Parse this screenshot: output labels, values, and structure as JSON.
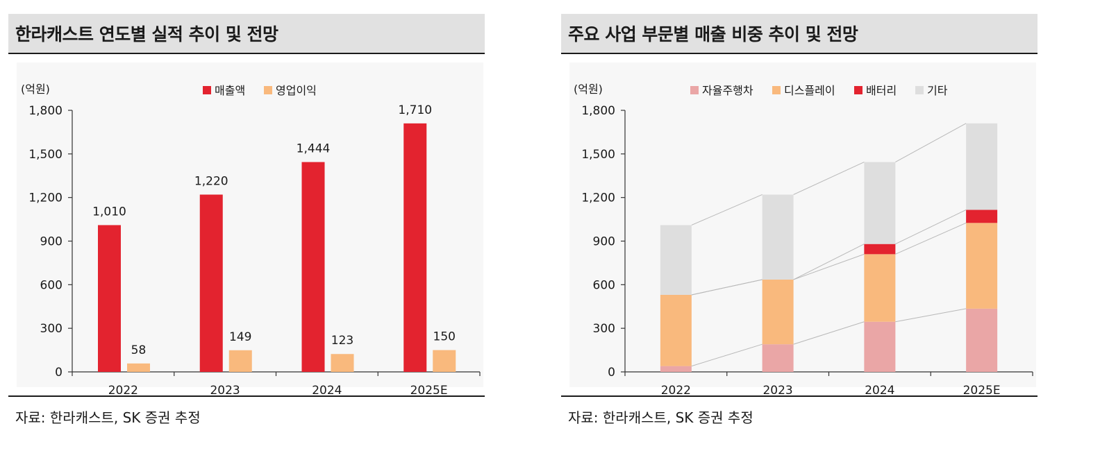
{
  "left_panel": {
    "title": "한라캐스트 연도별 실적 추이 및 전망",
    "source": "자료: 한라캐스트, SK 증권 추정"
  },
  "right_panel": {
    "title": "주요 사업 부문별 매출 비중 추이 및 전망",
    "source": "자료: 한라캐스트, SK 증권 추정"
  },
  "chart_data": [
    {
      "type": "bar",
      "unit_label": "(억원)",
      "categories": [
        "2022",
        "2023",
        "2024",
        "2025E"
      ],
      "series": [
        {
          "name": "매출액",
          "values": [
            1010,
            1220,
            1444,
            1710
          ],
          "labels": [
            "1,010",
            "1,220",
            "1,444",
            "1,710"
          ],
          "color": "#e3232f"
        },
        {
          "name": "영업이익",
          "values": [
            58,
            149,
            123,
            150
          ],
          "labels": [
            "58",
            "149",
            "123",
            "150"
          ],
          "color": "#f9b97d"
        }
      ],
      "yticks": [
        0,
        300,
        600,
        900,
        1200,
        1500,
        1800
      ],
      "ytick_labels": [
        "0",
        "300",
        "600",
        "900",
        "1,200",
        "1,500",
        "1,800"
      ],
      "ylim": [
        0,
        1800
      ],
      "legend_position": "top-center",
      "grid": false
    },
    {
      "type": "stacked_bar",
      "unit_label": "(억원)",
      "categories": [
        "2022",
        "2023",
        "2024",
        "2025E"
      ],
      "series": [
        {
          "name": "자율주행차",
          "values": [
            40,
            190,
            345,
            435
          ],
          "color": "#eaa6a6"
        },
        {
          "name": "디스플레이",
          "values": [
            490,
            445,
            465,
            590
          ],
          "color": "#f9b97d"
        },
        {
          "name": "배터리",
          "values": [
            0,
            0,
            70,
            90
          ],
          "color": "#e3232f"
        },
        {
          "name": "기타",
          "values": [
            480,
            585,
            564,
            595
          ],
          "color": "#dedede"
        }
      ],
      "yticks": [
        0,
        300,
        600,
        900,
        1200,
        1500,
        1800
      ],
      "ytick_labels": [
        "0",
        "300",
        "600",
        "900",
        "1,200",
        "1,500",
        "1,800"
      ],
      "ylim": [
        0,
        1800
      ],
      "legend_position": "top-center",
      "connector_lines": true,
      "grid": false
    }
  ]
}
